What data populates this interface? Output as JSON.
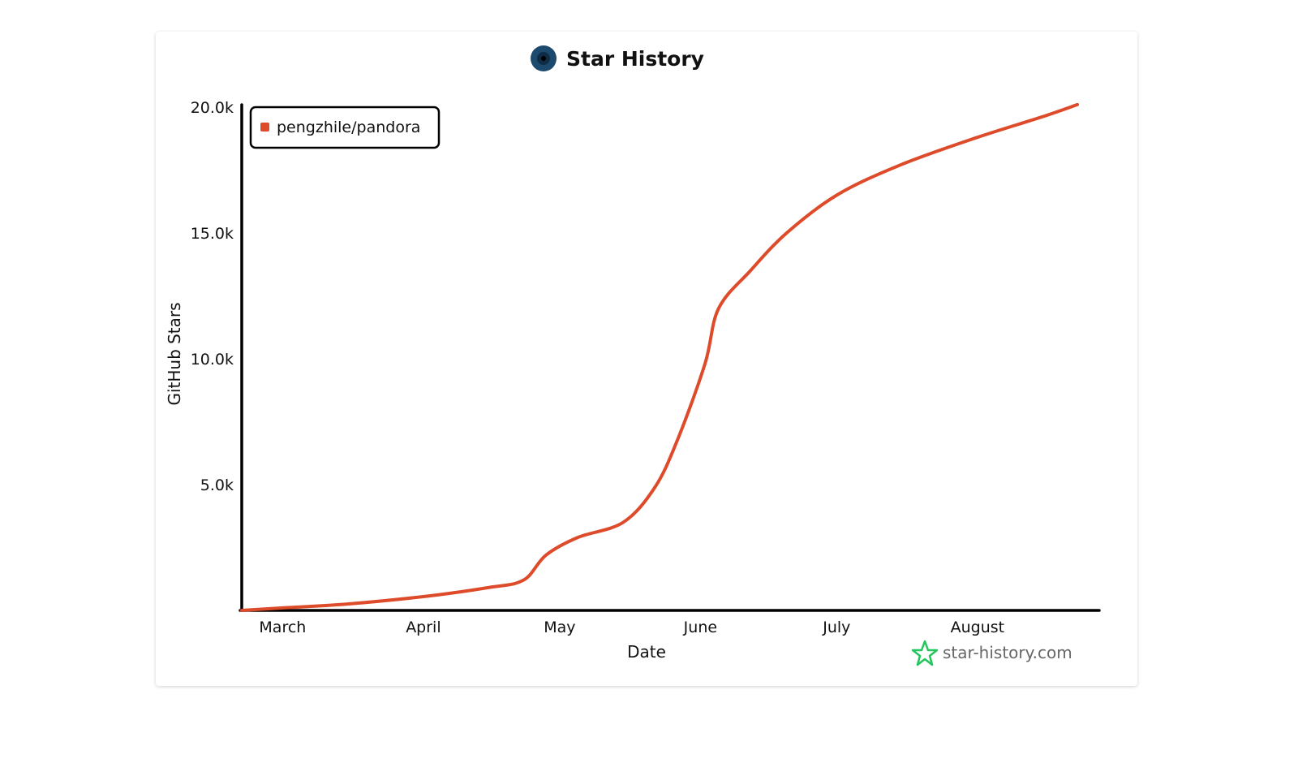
{
  "chart_data": {
    "type": "line",
    "title": "Star History",
    "xlabel": "Date",
    "ylabel": "GitHub Stars",
    "x_ticks": [
      "March",
      "April",
      "May",
      "June",
      "July",
      "August"
    ],
    "y_ticks": [
      "5.0k",
      "10.0k",
      "15.0k",
      "20.0k"
    ],
    "y_tick_values": [
      5000,
      10000,
      15000,
      20000
    ],
    "ylim": [
      0,
      20000
    ],
    "xlim": [
      "2023-02-20",
      "2023-08-23"
    ],
    "x_tick_dates": [
      "2023-03-01",
      "2023-04-01",
      "2023-05-01",
      "2023-06-01",
      "2023-07-01",
      "2023-08-01"
    ],
    "grid": false,
    "legend_position": "top-left",
    "series": [
      {
        "name": "pengzhile/pandora",
        "color": "#dd4b2b",
        "points": [
          [
            "2023-02-20",
            0
          ],
          [
            "2023-03-01",
            100
          ],
          [
            "2023-03-15",
            250
          ],
          [
            "2023-04-01",
            550
          ],
          [
            "2023-04-15",
            900
          ],
          [
            "2023-04-23",
            1200
          ],
          [
            "2023-04-28",
            2200
          ],
          [
            "2023-05-05",
            2900
          ],
          [
            "2023-05-15",
            3500
          ],
          [
            "2023-05-22",
            4900
          ],
          [
            "2023-05-27",
            6800
          ],
          [
            "2023-06-02",
            9800
          ],
          [
            "2023-06-05",
            12000
          ],
          [
            "2023-06-12",
            13500
          ],
          [
            "2023-06-20",
            15000
          ],
          [
            "2023-07-01",
            16500
          ],
          [
            "2023-07-15",
            17700
          ],
          [
            "2023-08-01",
            18800
          ],
          [
            "2023-08-15",
            19600
          ],
          [
            "2023-08-23",
            20100
          ]
        ]
      }
    ]
  },
  "credit": {
    "text": "star-history.com",
    "icon": "star-icon",
    "icon_color": "#22c55e"
  },
  "logo": {
    "icon": "eye-logo-icon",
    "color": "#1c4a6e"
  }
}
